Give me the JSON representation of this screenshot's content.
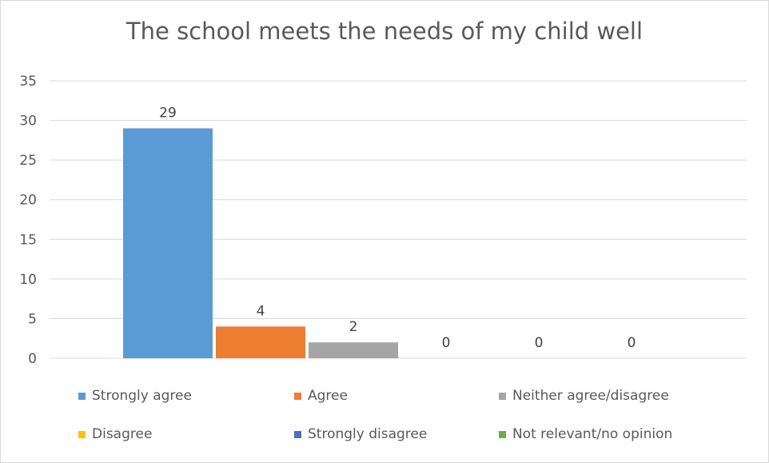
{
  "chart_data": {
    "type": "bar",
    "title": "The school meets the needs of my child well",
    "xlabel": "",
    "ylabel": "",
    "ylim": [
      0,
      35
    ],
    "yticks": [
      0,
      5,
      10,
      15,
      20,
      25,
      30,
      35
    ],
    "grid": true,
    "legend_position": "bottom",
    "categories": [
      "Strongly agree",
      "Agree",
      "Neither agree/disagree",
      "Disagree",
      "Strongly disagree",
      "Not relevant/no opinion"
    ],
    "values": [
      29,
      4,
      2,
      0,
      0,
      0
    ],
    "colors": [
      "#5b9bd5",
      "#ed7d31",
      "#a5a5a5",
      "#ffc000",
      "#4472c4",
      "#70ad47"
    ]
  }
}
